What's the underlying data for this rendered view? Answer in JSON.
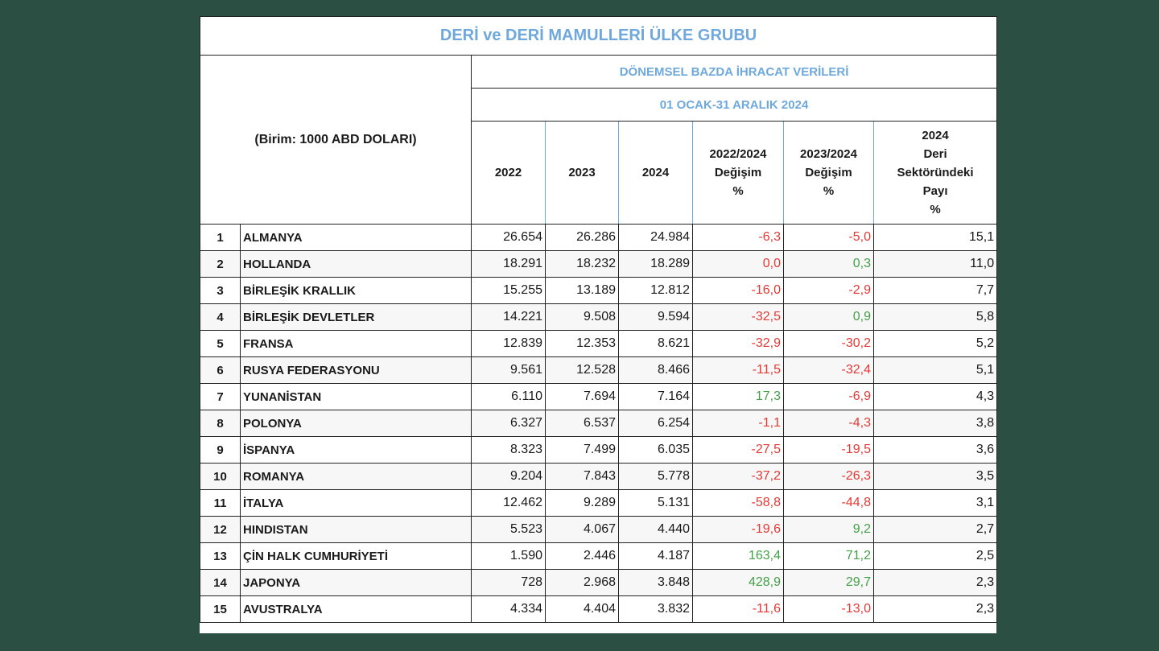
{
  "title": "DERİ ve DERİ MAMULLERİ ÜLKE GRUBU",
  "unit_label": "(Birim: 1000 ABD DOLARI)",
  "period_title": "DÖNEMSEL BAZDA İHRACAT VERİLERİ",
  "date_range": "01 OCAK-31 ARALIK 2024",
  "columns": {
    "y2022": "2022",
    "y2023": "2023",
    "y2024": "2024",
    "chg2224": [
      "2022/2024",
      "Değişim",
      "%"
    ],
    "chg2324": [
      "2023/2024",
      "Değişim",
      "%"
    ],
    "share": [
      "2024",
      "Deri",
      "Sektöründeki",
      "Payı",
      "%"
    ]
  },
  "colors": {
    "background": "#2c4f43",
    "title_blue": "#6fa8dc",
    "negative": "#e53935",
    "positive": "#43a047"
  },
  "rows": [
    {
      "rank": "1",
      "country": "ALMANYA",
      "v2022": "26.654",
      "v2023": "26.286",
      "v2024": "24.984",
      "c2224": "-6,3",
      "c2324": "-5,0",
      "share": "15,1"
    },
    {
      "rank": "2",
      "country": "HOLLANDA",
      "v2022": "18.291",
      "v2023": "18.232",
      "v2024": "18.289",
      "c2224": "0,0",
      "c2324": "0,3",
      "share": "11,0"
    },
    {
      "rank": "3",
      "country": "BİRLEŞİK KRALLIK",
      "v2022": "15.255",
      "v2023": "13.189",
      "v2024": "12.812",
      "c2224": "-16,0",
      "c2324": "-2,9",
      "share": "7,7"
    },
    {
      "rank": "4",
      "country": "BİRLEŞİK DEVLETLER",
      "v2022": "14.221",
      "v2023": "9.508",
      "v2024": "9.594",
      "c2224": "-32,5",
      "c2324": "0,9",
      "share": "5,8"
    },
    {
      "rank": "5",
      "country": "FRANSA",
      "v2022": "12.839",
      "v2023": "12.353",
      "v2024": "8.621",
      "c2224": "-32,9",
      "c2324": "-30,2",
      "share": "5,2"
    },
    {
      "rank": "6",
      "country": "RUSYA FEDERASYONU",
      "v2022": "9.561",
      "v2023": "12.528",
      "v2024": "8.466",
      "c2224": "-11,5",
      "c2324": "-32,4",
      "share": "5,1"
    },
    {
      "rank": "7",
      "country": "YUNANİSTAN",
      "v2022": "6.110",
      "v2023": "7.694",
      "v2024": "7.164",
      "c2224": "17,3",
      "c2324": "-6,9",
      "share": "4,3"
    },
    {
      "rank": "8",
      "country": "POLONYA",
      "v2022": "6.327",
      "v2023": "6.537",
      "v2024": "6.254",
      "c2224": "-1,1",
      "c2324": "-4,3",
      "share": "3,8"
    },
    {
      "rank": "9",
      "country": "İSPANYA",
      "v2022": "8.323",
      "v2023": "7.499",
      "v2024": "6.035",
      "c2224": "-27,5",
      "c2324": "-19,5",
      "share": "3,6"
    },
    {
      "rank": "10",
      "country": "ROMANYA",
      "v2022": "9.204",
      "v2023": "7.843",
      "v2024": "5.778",
      "c2224": "-37,2",
      "c2324": "-26,3",
      "share": "3,5"
    },
    {
      "rank": "11",
      "country": "İTALYA",
      "v2022": "12.462",
      "v2023": "9.289",
      "v2024": "5.131",
      "c2224": "-58,8",
      "c2324": "-44,8",
      "share": "3,1"
    },
    {
      "rank": "12",
      "country": "HINDISTAN",
      "v2022": "5.523",
      "v2023": "4.067",
      "v2024": "4.440",
      "c2224": "-19,6",
      "c2324": "9,2",
      "share": "2,7"
    },
    {
      "rank": "13",
      "country": "ÇİN HALK CUMHURİYETİ",
      "v2022": "1.590",
      "v2023": "2.446",
      "v2024": "4.187",
      "c2224": "163,4",
      "c2324": "71,2",
      "share": "2,5"
    },
    {
      "rank": "14",
      "country": "JAPONYA",
      "v2022": "728",
      "v2023": "2.968",
      "v2024": "3.848",
      "c2224": "428,9",
      "c2324": "29,7",
      "share": "2,3"
    },
    {
      "rank": "15",
      "country": "AVUSTRALYA",
      "v2022": "4.334",
      "v2023": "4.404",
      "v2024": "3.832",
      "c2224": "-11,6",
      "c2324": "-13,0",
      "share": "2,3"
    }
  ]
}
